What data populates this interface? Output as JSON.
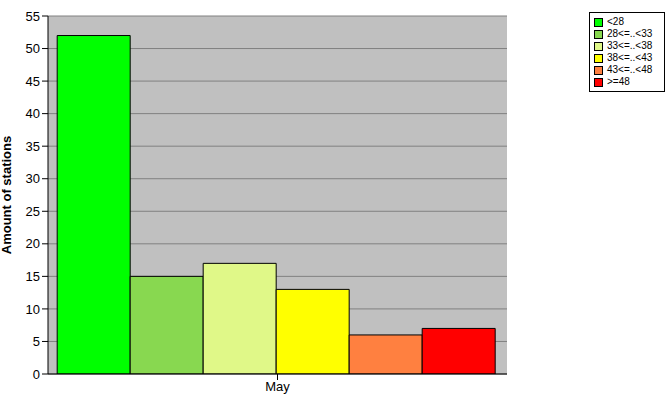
{
  "chart_data": {
    "type": "bar",
    "categories": [
      "May"
    ],
    "ylabel": "Amount of stations",
    "series": [
      {
        "name": "<28",
        "color": "#00ff00",
        "values": [
          52
        ]
      },
      {
        "name": "28<=..<33",
        "color": "#88d850",
        "values": [
          15
        ]
      },
      {
        "name": "33<=..<38",
        "color": "#e0f888",
        "values": [
          17
        ]
      },
      {
        "name": "38<=..<43",
        "color": "#ffff00",
        "values": [
          13
        ]
      },
      {
        "name": "43<=..<48",
        "color": "#ff8040",
        "values": [
          6
        ]
      },
      {
        "name": ">=48",
        "color": "#ff0000",
        "values": [
          7
        ]
      }
    ],
    "ylim": [
      0,
      55
    ],
    "yticks": [
      0,
      5,
      10,
      15,
      20,
      25,
      30,
      35,
      40,
      45,
      50,
      55
    ],
    "grid": true,
    "legend": "upper right"
  }
}
